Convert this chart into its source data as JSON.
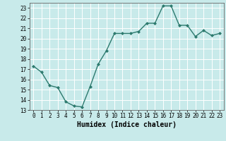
{
  "x": [
    0,
    1,
    2,
    3,
    4,
    5,
    6,
    7,
    8,
    9,
    10,
    11,
    12,
    13,
    14,
    15,
    16,
    17,
    18,
    19,
    20,
    21,
    22,
    23
  ],
  "y": [
    17.3,
    16.7,
    15.4,
    15.2,
    13.8,
    13.4,
    13.3,
    15.3,
    17.5,
    18.8,
    20.5,
    20.5,
    20.5,
    20.7,
    21.5,
    21.5,
    23.2,
    23.2,
    21.3,
    21.3,
    20.2,
    20.8,
    20.3,
    20.5
  ],
  "xlabel": "Humidex (Indice chaleur)",
  "xlim": [
    -0.5,
    23.5
  ],
  "ylim": [
    13,
    23.5
  ],
  "yticks": [
    13,
    14,
    15,
    16,
    17,
    18,
    19,
    20,
    21,
    22,
    23
  ],
  "xticks": [
    0,
    1,
    2,
    3,
    4,
    5,
    6,
    7,
    8,
    9,
    10,
    11,
    12,
    13,
    14,
    15,
    16,
    17,
    18,
    19,
    20,
    21,
    22,
    23
  ],
  "line_color": "#2d7a6e",
  "marker_color": "#2d7a6e",
  "bg_color": "#c8eaea",
  "grid_color": "#ffffff",
  "tick_label_fontsize": 5.5,
  "xlabel_fontsize": 7.0
}
